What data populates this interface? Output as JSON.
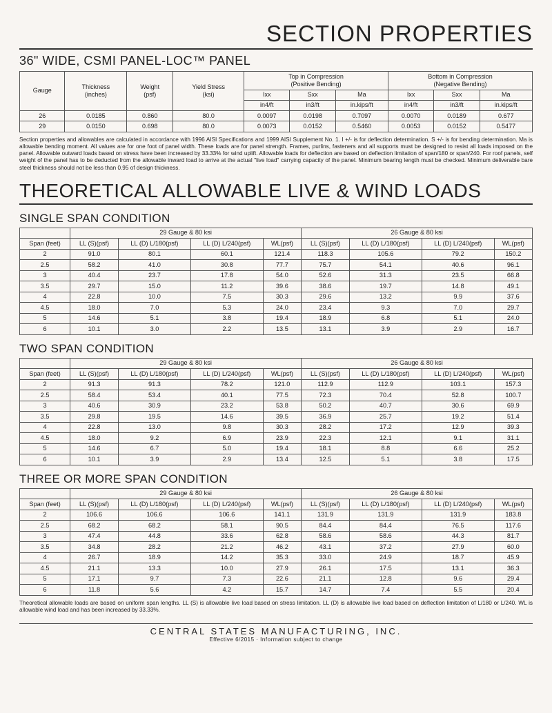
{
  "titles": {
    "main": "SECTION PROPERTIES",
    "panel": "36\" WIDE, CSMI PANEL-LOC™ PANEL",
    "loads": "THEORETICAL ALLOWABLE LIVE & WIND LOADS",
    "single": "SINGLE SPAN CONDITION",
    "two": "TWO SPAN CONDITION",
    "three": "THREE OR MORE SPAN CONDITION"
  },
  "props_table": {
    "headers": {
      "gauge": "Gauge",
      "thickness": "Thickness\n(inches)",
      "weight": "Weight\n(psf)",
      "yield": "Yield Stress\n(ksi)",
      "top": "Top in Compression\n(Positive Bending)",
      "bottom": "Bottom in Compression\n(Negative Bending)",
      "ixx": "Ixx",
      "sxx": "Sxx",
      "ma": "Ma",
      "u_ixx": "in4/ft",
      "u_sxx": "in3/ft",
      "u_ma": "in.kips/ft"
    },
    "rows": [
      {
        "gauge": "26",
        "thickness": "0.0185",
        "weight": "0.860",
        "yield": "80.0",
        "t_ixx": "0.0097",
        "t_sxx": "0.0198",
        "t_ma": "0.7097",
        "b_ixx": "0.0070",
        "b_sxx": "0.0189",
        "b_ma": "0.677"
      },
      {
        "gauge": "29",
        "thickness": "0.0150",
        "weight": "0.698",
        "yield": "80.0",
        "t_ixx": "0.0073",
        "t_sxx": "0.0152",
        "t_ma": "0.5460",
        "b_ixx": "0.0053",
        "b_sxx": "0.0152",
        "b_ma": "0.5477"
      }
    ]
  },
  "notes": {
    "props": "Section properties and allowables are calculated in accordance with 1996 AISI Specifications and 1999 AISI Supplement No. 1. I +/- is for deflection determination. S +/- is for bending determination. Ma is allowable bending moment. All values are for one foot of panel width. These loads are for panel strength. Frames, purlins, fasteners and all supports must be designed to resist all loads imposed on the panel. Allowable outward loads based on stress have been increased by 33.33% for wind uplift. Allowable loads for deflection are based on deflection limitation of span/180 or span/240. For roof panels, self weight of the panel has to be deducted from the allowable inward load to arrive at the actual \"live load\" carrying capacity of the panel. Minimum bearing length must be checked. Minimum deliverable bare steel thickness should not be less than 0.95 of design thickness.",
    "loads": "Theoretical allowable loads are based on uniform span lengths. LL (S) is allowable live load based on stress limitation. LL (D) is allowable live load based on deflection limitation of L/180 or L/240. WL is allowable wind load and has been increased by 33.33%."
  },
  "load_headers": {
    "span": "Span (feet)",
    "g29": "29 Gauge & 80 ksi",
    "g26": "26 Gauge & 80 ksi",
    "lls": "LL (S)(psf)",
    "lld180": "LL (D) L/180(psf)",
    "lld240": "LL (D) L/240(psf)",
    "wl": "WL(psf)"
  },
  "single_span": [
    {
      "span": "2",
      "a": "91.0",
      "b": "80.1",
      "c": "60.1",
      "d": "121.4",
      "e": "118.3",
      "f": "105.6",
      "g": "79.2",
      "h": "150.2"
    },
    {
      "span": "2.5",
      "a": "58.2",
      "b": "41.0",
      "c": "30.8",
      "d": "77.7",
      "e": "75.7",
      "f": "54.1",
      "g": "40.6",
      "h": "96.1"
    },
    {
      "span": "3",
      "a": "40.4",
      "b": "23.7",
      "c": "17.8",
      "d": "54.0",
      "e": "52.6",
      "f": "31.3",
      "g": "23.5",
      "h": "66.8"
    },
    {
      "span": "3.5",
      "a": "29.7",
      "b": "15.0",
      "c": "11.2",
      "d": "39.6",
      "e": "38.6",
      "f": "19.7",
      "g": "14.8",
      "h": "49.1"
    },
    {
      "span": "4",
      "a": "22.8",
      "b": "10.0",
      "c": "7.5",
      "d": "30.3",
      "e": "29.6",
      "f": "13.2",
      "g": "9.9",
      "h": "37.6"
    },
    {
      "span": "4.5",
      "a": "18.0",
      "b": "7.0",
      "c": "5.3",
      "d": "24.0",
      "e": "23.4",
      "f": "9.3",
      "g": "7.0",
      "h": "29.7"
    },
    {
      "span": "5",
      "a": "14.6",
      "b": "5.1",
      "c": "3.8",
      "d": "19.4",
      "e": "18.9",
      "f": "6.8",
      "g": "5.1",
      "h": "24.0"
    },
    {
      "span": "6",
      "a": "10.1",
      "b": "3.0",
      "c": "2.2",
      "d": "13.5",
      "e": "13.1",
      "f": "3.9",
      "g": "2.9",
      "h": "16.7"
    }
  ],
  "two_span": [
    {
      "span": "2",
      "a": "91.3",
      "b": "91.3",
      "c": "78.2",
      "d": "121.0",
      "e": "112.9",
      "f": "112.9",
      "g": "103.1",
      "h": "157.3"
    },
    {
      "span": "2.5",
      "a": "58.4",
      "b": "53.4",
      "c": "40.1",
      "d": "77.5",
      "e": "72.3",
      "f": "70.4",
      "g": "52.8",
      "h": "100.7"
    },
    {
      "span": "3",
      "a": "40.6",
      "b": "30.9",
      "c": "23.2",
      "d": "53.8",
      "e": "50.2",
      "f": "40.7",
      "g": "30.6",
      "h": "69.9"
    },
    {
      "span": "3.5",
      "a": "29.8",
      "b": "19.5",
      "c": "14.6",
      "d": "39.5",
      "e": "36.9",
      "f": "25.7",
      "g": "19.2",
      "h": "51.4"
    },
    {
      "span": "4",
      "a": "22.8",
      "b": "13.0",
      "c": "9.8",
      "d": "30.3",
      "e": "28.2",
      "f": "17.2",
      "g": "12.9",
      "h": "39.3"
    },
    {
      "span": "4.5",
      "a": "18.0",
      "b": "9.2",
      "c": "6.9",
      "d": "23.9",
      "e": "22.3",
      "f": "12.1",
      "g": "9.1",
      "h": "31.1"
    },
    {
      "span": "5",
      "a": "14.6",
      "b": "6.7",
      "c": "5.0",
      "d": "19.4",
      "e": "18.1",
      "f": "8.8",
      "g": "6.6",
      "h": "25.2"
    },
    {
      "span": "6",
      "a": "10.1",
      "b": "3.9",
      "c": "2.9",
      "d": "13.4",
      "e": "12.5",
      "f": "5.1",
      "g": "3.8",
      "h": "17.5"
    }
  ],
  "three_span": [
    {
      "span": "2",
      "a": "106.6",
      "b": "106.6",
      "c": "106.6",
      "d": "141.1",
      "e": "131.9",
      "f": "131.9",
      "g": "131.9",
      "h": "183.8"
    },
    {
      "span": "2.5",
      "a": "68.2",
      "b": "68.2",
      "c": "58.1",
      "d": "90.5",
      "e": "84.4",
      "f": "84.4",
      "g": "76.5",
      "h": "117.6"
    },
    {
      "span": "3",
      "a": "47.4",
      "b": "44.8",
      "c": "33.6",
      "d": "62.8",
      "e": "58.6",
      "f": "58.6",
      "g": "44.3",
      "h": "81.7"
    },
    {
      "span": "3.5",
      "a": "34.8",
      "b": "28.2",
      "c": "21.2",
      "d": "46.2",
      "e": "43.1",
      "f": "37.2",
      "g": "27.9",
      "h": "60.0"
    },
    {
      "span": "4",
      "a": "26.7",
      "b": "18.9",
      "c": "14.2",
      "d": "35.3",
      "e": "33.0",
      "f": "24.9",
      "g": "18.7",
      "h": "45.9"
    },
    {
      "span": "4.5",
      "a": "21.1",
      "b": "13.3",
      "c": "10.0",
      "d": "27.9",
      "e": "26.1",
      "f": "17.5",
      "g": "13.1",
      "h": "36.3"
    },
    {
      "span": "5",
      "a": "17.1",
      "b": "9.7",
      "c": "7.3",
      "d": "22.6",
      "e": "21.1",
      "f": "12.8",
      "g": "9.6",
      "h": "29.4"
    },
    {
      "span": "6",
      "a": "11.8",
      "b": "5.6",
      "c": "4.2",
      "d": "15.7",
      "e": "14.7",
      "f": "7.4",
      "g": "5.5",
      "h": "20.4"
    }
  ],
  "footer": {
    "company": "CENTRAL STATES MANUFACTURING, INC.",
    "sub": "Effective 6/2015 · Information subject to change"
  }
}
